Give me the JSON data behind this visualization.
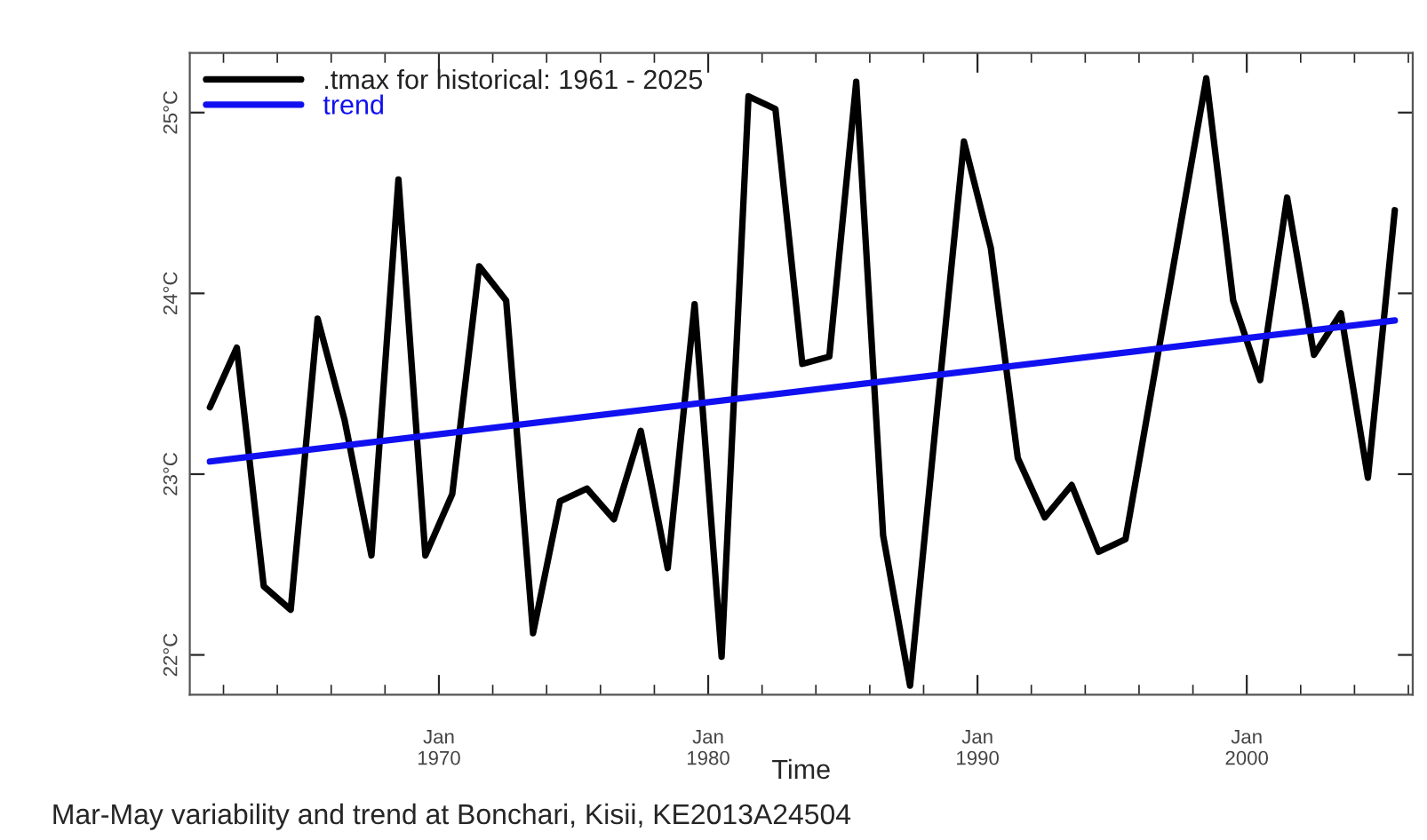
{
  "chart_data": {
    "type": "line",
    "xlabel": "Time",
    "annotations": [
      "Mar-May variability and trend at Bonchari, Kisii, KE2013A24504"
    ],
    "x": [
      "1961-07",
      "1962-07",
      "1963-07",
      "1964-07",
      "1965-07",
      "1966-07",
      "1967-07",
      "1968-07",
      "1969-07",
      "1970-07",
      "1971-07",
      "1972-07",
      "1973-07",
      "1974-07",
      "1975-07",
      "1976-07",
      "1977-07",
      "1978-07",
      "1979-07",
      "1980-07",
      "1981-07",
      "1982-07",
      "1983-07",
      "1984-07",
      "1985-07",
      "1986-07",
      "1987-07",
      "1988-07",
      "1989-07",
      "1990-07",
      "1991-07",
      "1992-07",
      "1993-07",
      "1994-07",
      "1995-07",
      "1996-07",
      "1997-07",
      "1998-07",
      "1999-07",
      "2000-07",
      "2001-07",
      "2002-07",
      "2003-07",
      "2004-07",
      "2005-07"
    ],
    "series": [
      {
        "name": ".tmax for historical: 1961 - 2025",
        "color": "#000000",
        "values": [
          23.37,
          23.7,
          22.38,
          22.25,
          23.86,
          23.3,
          22.55,
          24.63,
          22.55,
          22.89,
          24.15,
          23.96,
          22.12,
          22.85,
          22.92,
          22.75,
          23.24,
          22.48,
          23.94,
          21.99,
          25.09,
          25.02,
          23.61,
          23.65,
          25.17,
          22.66,
          21.83,
          23.35,
          24.84,
          24.25,
          23.09,
          22.76,
          22.94,
          22.57,
          22.64,
          23.49,
          24.34,
          25.19,
          23.96,
          23.52,
          24.53,
          23.66,
          23.89,
          22.98,
          24.46
        ]
      },
      {
        "name": "trend",
        "color": "#1010f0",
        "x": [
          "1961-07",
          "2005-07"
        ],
        "values": [
          23.07,
          23.85
        ]
      }
    ],
    "xlim": [
      "1960-10",
      "2006-03"
    ],
    "xticks": [
      {
        "value": "1970-01",
        "label": "Jan\n1970"
      },
      {
        "value": "1980-01",
        "label": "Jan\n1980"
      },
      {
        "value": "1990-01",
        "label": "Jan\n1990"
      },
      {
        "value": "2000-01",
        "label": "Jan\n2000"
      }
    ],
    "ylim": [
      21.78,
      25.33
    ],
    "yticks": [
      {
        "value": 22,
        "label": "22°C"
      },
      {
        "value": 23,
        "label": "23°C"
      },
      {
        "value": 24,
        "label": "24°C"
      },
      {
        "value": 25,
        "label": "25°C"
      }
    ],
    "grid": false,
    "legend": "top left",
    "line_style": "solid",
    "marker": "none"
  }
}
